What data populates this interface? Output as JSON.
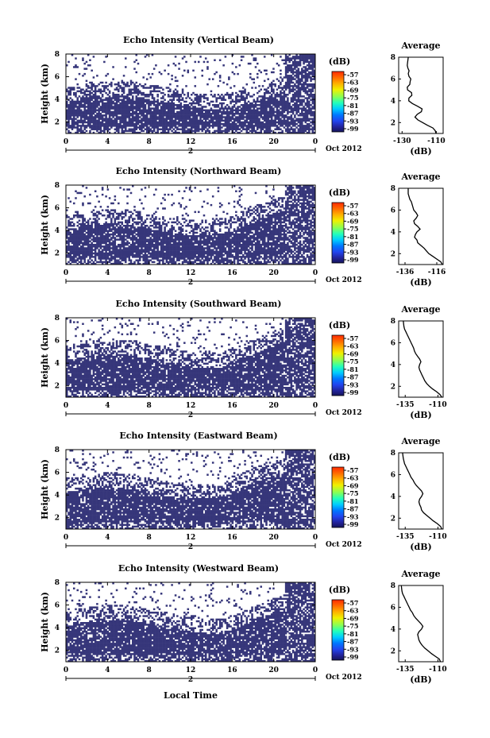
{
  "figure": {
    "bottom_xlabel": "Local Time"
  },
  "panels": [
    {
      "title": "Echo Intensity (Vertical Beam)",
      "ylabel": "Height (km)",
      "date_label": "Oct 2012",
      "second_day": "2",
      "colorbar_unit": "(dB)",
      "avg_title": "Average",
      "avg_xlabel": "(dB)",
      "avg_xticks": [
        "-130",
        "-110"
      ],
      "avg_xlim": [
        -132,
        -106
      ]
    },
    {
      "title": "Echo Intensity (Northward Beam)",
      "ylabel": "Height (km)",
      "date_label": "Oct 2012",
      "second_day": "2",
      "colorbar_unit": "(dB)",
      "avg_title": "Average",
      "avg_xlabel": "(dB)",
      "avg_xticks": [
        "-136",
        "-116"
      ],
      "avg_xlim": [
        -140,
        -112
      ]
    },
    {
      "title": "Echo Intensity (Southward Beam)",
      "ylabel": "Height (km)",
      "date_label": "Oct 2012",
      "second_day": "2",
      "colorbar_unit": "(dB)",
      "avg_title": "Average",
      "avg_xlabel": "(dB)",
      "avg_xticks": [
        "-135",
        "-110"
      ],
      "avg_xlim": [
        -140,
        -106
      ]
    },
    {
      "title": "Echo Intensity (Eastward Beam)",
      "ylabel": "Height (km)",
      "date_label": "Oct 2012",
      "second_day": "2",
      "colorbar_unit": "(dB)",
      "avg_title": "Average",
      "avg_xlabel": "(dB)",
      "avg_xticks": [
        "-135",
        "-110"
      ],
      "avg_xlim": [
        -140,
        -106
      ]
    },
    {
      "title": "Echo Intensity (Westward Beam)",
      "ylabel": "Height (km)",
      "date_label": "Oct 2012",
      "second_day": "2",
      "colorbar_unit": "(dB)",
      "avg_title": "Average",
      "avg_xlabel": "(dB)",
      "avg_xticks": [
        "-135",
        "-110"
      ],
      "avg_xlim": [
        -140,
        -106
      ]
    }
  ],
  "colorbar": {
    "ticks": [
      "-57",
      "-63",
      "-69",
      "-75",
      "-81",
      "-87",
      "-93",
      "-99"
    ],
    "colors": [
      "#ff0000",
      "#ff5500",
      "#ffaa00",
      "#ffee00",
      "#aaff44",
      "#33ffaa",
      "#00ddff",
      "#0088ff",
      "#2244ff",
      "#2222aa",
      "#14145a"
    ]
  },
  "chart_data": [
    {
      "type": "heatmap",
      "title": "Echo Intensity (Vertical Beam)",
      "xlabel": "",
      "ylabel": "Height (km)",
      "x_ticks": [
        "0",
        "4",
        "8",
        "12",
        "16",
        "20",
        "0"
      ],
      "y_ticks": [
        "2",
        "4",
        "6",
        "8"
      ],
      "xlim_hours": [
        0,
        24
      ],
      "ylim": [
        1,
        8
      ],
      "fill_color": "#36367a",
      "cells": [
        {
          "x_start": 0,
          "x_end": 24,
          "y_start": 1,
          "y_end": 3.7,
          "value": "-99"
        }
      ]
    },
    {
      "type": "line",
      "title": "Average",
      "xlabel": "(dB)",
      "ylabel": "",
      "xlim": [
        -132,
        -106
      ],
      "ylim": [
        1,
        8
      ],
      "series": [
        {
          "x": [
            -110.2,
            -110.6,
            -112.0,
            -115.2,
            -118.0,
            -120.8,
            -122.5,
            -121.2,
            -118.7,
            -118.3,
            -121.0,
            -124.0,
            -126.1,
            -126.0,
            -124.3,
            -124.5,
            -126.8,
            -127.0,
            -125.5,
            -125.3,
            -124.9,
            -126.0,
            -126.4,
            -125.9,
            -126.6,
            -127.0,
            -126.8,
            -126.4
          ],
          "y": [
            1.0,
            1.25,
            1.5,
            1.75,
            2.0,
            2.25,
            2.5,
            2.75,
            3.0,
            3.25,
            3.5,
            3.75,
            4.0,
            4.25,
            4.5,
            4.75,
            5.0,
            5.25,
            5.5,
            5.75,
            6.0,
            6.25,
            6.5,
            6.75,
            7.0,
            7.25,
            7.5,
            8.0
          ]
        }
      ]
    },
    {
      "type": "heatmap",
      "title": "Echo Intensity (Northward Beam)",
      "xlabel": "",
      "ylabel": "Height (km)",
      "x_ticks": [
        "0",
        "4",
        "8",
        "12",
        "16",
        "20",
        "0"
      ],
      "y_ticks": [
        "2",
        "4",
        "6",
        "8"
      ],
      "xlim_hours": [
        0,
        24
      ],
      "ylim": [
        1,
        8
      ],
      "fill_color": "#36367a",
      "cells": [
        {
          "x_start": 0,
          "x_end": 24,
          "y_start": 1,
          "y_end": 3.9,
          "value": "-99"
        }
      ]
    },
    {
      "type": "line",
      "title": "Average",
      "xlabel": "(dB)",
      "ylabel": "",
      "xlim": [
        -140,
        -112
      ],
      "ylim": [
        1,
        8
      ],
      "series": [
        {
          "x": [
            -112.5,
            -113.5,
            -116.0,
            -118.5,
            -121.0,
            -122.5,
            -124.0,
            -126.0,
            -128.0,
            -128.5,
            -130.0,
            -129.5,
            -128.5,
            -126.5,
            -128.0,
            -130.0,
            -130.5,
            -129.0,
            -128.0,
            -129.0,
            -130.5,
            -131.0,
            -131.5,
            -132.0,
            -133.0,
            -133.5,
            -134.0,
            -134.0
          ],
          "y": [
            1.0,
            1.25,
            1.5,
            1.75,
            2.0,
            2.25,
            2.5,
            2.75,
            3.0,
            3.25,
            3.5,
            3.75,
            4.0,
            4.25,
            4.5,
            4.75,
            5.0,
            5.25,
            5.5,
            5.75,
            6.0,
            6.25,
            6.5,
            6.75,
            7.0,
            7.25,
            7.5,
            8.0
          ]
        }
      ]
    },
    {
      "type": "heatmap",
      "title": "Echo Intensity (Southward Beam)",
      "xlabel": "",
      "ylabel": "Height (km)",
      "x_ticks": [
        "0",
        "4",
        "8",
        "12",
        "16",
        "20",
        "0"
      ],
      "y_ticks": [
        "2",
        "4",
        "6",
        "8"
      ],
      "xlim_hours": [
        0,
        24
      ],
      "ylim": [
        1,
        8
      ],
      "fill_color": "#36367a",
      "cells": [
        {
          "x_start": 0,
          "x_end": 24,
          "y_start": 1,
          "y_end": 3.9,
          "value": "-99"
        }
      ]
    },
    {
      "type": "line",
      "title": "Average",
      "xlabel": "(dB)",
      "ylabel": "",
      "xlim": [
        -140,
        -106
      ],
      "ylim": [
        1,
        8
      ],
      "series": [
        {
          "x": [
            -107.0,
            -108.5,
            -111.0,
            -114.0,
            -116.5,
            -118.5,
            -120.0,
            -121.0,
            -122.0,
            -123.0,
            -124.0,
            -124.5,
            -124.0,
            -123.0,
            -124.0,
            -125.5,
            -127.0,
            -128.0,
            -128.5,
            -129.5,
            -130.5,
            -131.5,
            -132.5,
            -133.5,
            -134.5,
            -135.5,
            -136.0,
            -136.5
          ],
          "y": [
            1.0,
            1.25,
            1.5,
            1.75,
            2.0,
            2.25,
            2.5,
            2.75,
            3.0,
            3.25,
            3.5,
            3.75,
            4.0,
            4.25,
            4.5,
            4.75,
            5.0,
            5.25,
            5.5,
            5.75,
            6.0,
            6.25,
            6.5,
            6.75,
            7.0,
            7.25,
            7.5,
            8.0
          ]
        }
      ]
    },
    {
      "type": "heatmap",
      "title": "Echo Intensity (Eastward Beam)",
      "xlabel": "",
      "ylabel": "Height (km)",
      "x_ticks": [
        "0",
        "4",
        "8",
        "12",
        "16",
        "20",
        "0"
      ],
      "y_ticks": [
        "2",
        "4",
        "6",
        "8"
      ],
      "xlim_hours": [
        0,
        24
      ],
      "ylim": [
        1,
        8
      ],
      "fill_color": "#36367a",
      "cells": [
        {
          "x_start": 0,
          "x_end": 24,
          "y_start": 1,
          "y_end": 3.9,
          "value": "-99"
        }
      ]
    },
    {
      "type": "line",
      "title": "Average",
      "xlabel": "(dB)",
      "ylabel": "",
      "xlim": [
        -140,
        -106
      ],
      "ylim": [
        1,
        8
      ],
      "series": [
        {
          "x": [
            -107.0,
            -108.0,
            -110.5,
            -113.5,
            -116.0,
            -118.5,
            -121.0,
            -122.5,
            -123.0,
            -124.0,
            -124.5,
            -124.0,
            -122.5,
            -121.5,
            -122.5,
            -124.5,
            -126.5,
            -128.0,
            -129.0,
            -130.5,
            -131.5,
            -132.5,
            -133.5,
            -134.5,
            -135.5,
            -136.0,
            -136.5,
            -137.0
          ],
          "y": [
            1.0,
            1.25,
            1.5,
            1.75,
            2.0,
            2.25,
            2.5,
            2.75,
            3.0,
            3.25,
            3.5,
            3.75,
            4.0,
            4.25,
            4.5,
            4.75,
            5.0,
            5.25,
            5.5,
            5.75,
            6.0,
            6.25,
            6.5,
            6.75,
            7.0,
            7.25,
            7.5,
            8.0
          ]
        }
      ]
    },
    {
      "type": "heatmap",
      "title": "Echo Intensity (Westward Beam)",
      "xlabel": "Local Time",
      "ylabel": "Height (km)",
      "x_ticks": [
        "0",
        "4",
        "8",
        "12",
        "16",
        "20",
        "0"
      ],
      "y_ticks": [
        "2",
        "4",
        "6",
        "8"
      ],
      "xlim_hours": [
        0,
        24
      ],
      "ylim": [
        1,
        8
      ],
      "fill_color": "#36367a",
      "cells": [
        {
          "x_start": 0,
          "x_end": 24,
          "y_start": 1,
          "y_end": 3.9,
          "value": "-99"
        }
      ]
    },
    {
      "type": "line",
      "title": "Average",
      "xlabel": "(dB)",
      "ylabel": "",
      "xlim": [
        -140,
        -106
      ],
      "ylim": [
        1,
        8
      ],
      "series": [
        {
          "x": [
            -108.0,
            -109.0,
            -112.0,
            -115.0,
            -117.5,
            -120.0,
            -122.0,
            -123.5,
            -124.5,
            -125.0,
            -125.5,
            -124.5,
            -122.5,
            -121.5,
            -123.0,
            -125.0,
            -127.0,
            -128.5,
            -129.5,
            -131.0,
            -132.0,
            -133.0,
            -134.0,
            -135.0,
            -136.0,
            -137.0,
            -137.5,
            -138.0
          ],
          "y": [
            1.0,
            1.25,
            1.5,
            1.75,
            2.0,
            2.25,
            2.5,
            2.75,
            3.0,
            3.25,
            3.5,
            3.75,
            4.0,
            4.25,
            4.5,
            4.75,
            5.0,
            5.25,
            5.5,
            5.75,
            6.0,
            6.25,
            6.5,
            6.75,
            7.0,
            7.25,
            7.5,
            8.0
          ]
        }
      ]
    }
  ]
}
